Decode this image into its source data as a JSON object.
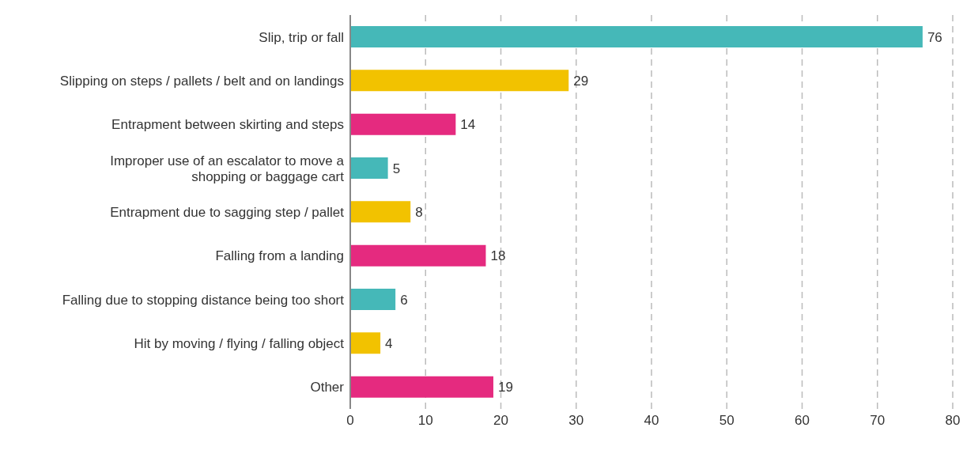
{
  "chart_data": {
    "type": "bar",
    "orientation": "horizontal",
    "categories": [
      "Slip, trip or fall",
      "Slipping on steps / pallets / belt and on landings",
      "Entrapment between skirting and steps",
      "Improper use of an escalator to move a shopping or baggage cart",
      "Entrapment due to sagging step / pallet",
      "Falling from a landing",
      "Falling due to stopping distance being too short",
      "Hit by moving / flying / falling object",
      "Other"
    ],
    "values": [
      76,
      29,
      14,
      5,
      8,
      18,
      6,
      4,
      19
    ],
    "colors": [
      "#45b8b8",
      "#f2c200",
      "#e52a7f",
      "#45b8b8",
      "#f2c200",
      "#e52a7f",
      "#45b8b8",
      "#f2c200",
      "#e52a7f"
    ],
    "xlim": [
      0,
      80
    ],
    "xticks": [
      0,
      10,
      20,
      30,
      40,
      50,
      60,
      70,
      80
    ],
    "grid": "x",
    "data_labels": true
  }
}
